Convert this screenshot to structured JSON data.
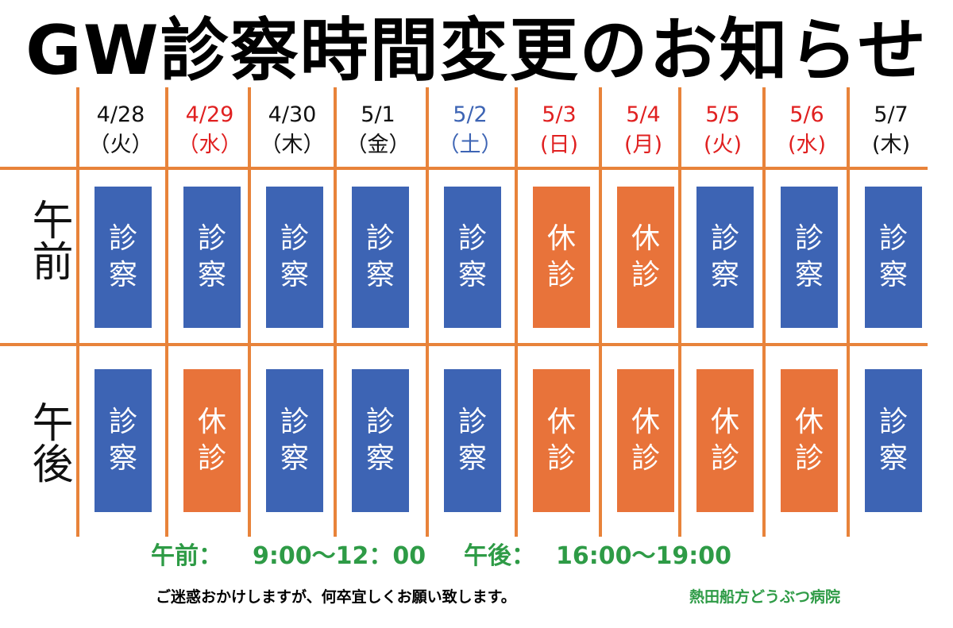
{
  "title": "GW診察時間変更のお知らせ",
  "colors": {
    "grid_line": "#e8833a",
    "open": "#3d64b4",
    "closed": "#e8733a",
    "weekday_text": "#111111",
    "holiday_text": "#e02020",
    "saturday_text": "#3d64b4",
    "hours_text": "#2e9b46"
  },
  "rows": {
    "morning": "午前",
    "afternoon": "午後"
  },
  "labels": {
    "open": "診察",
    "closed": "休診"
  },
  "days": [
    {
      "date": "4/28",
      "weekday": "（火）",
      "type": "weekday",
      "am": "open",
      "pm": "open"
    },
    {
      "date": "4/29",
      "weekday": "（水）",
      "type": "holiday",
      "am": "open",
      "pm": "closed"
    },
    {
      "date": "4/30",
      "weekday": "（木）",
      "type": "weekday",
      "am": "open",
      "pm": "open"
    },
    {
      "date": "5/1",
      "weekday": "（金）",
      "type": "weekday",
      "am": "open",
      "pm": "open"
    },
    {
      "date": "5/2",
      "weekday": "（土）",
      "type": "saturday",
      "am": "open",
      "pm": "open"
    },
    {
      "date": "5/3",
      "weekday": "(日)",
      "type": "holiday",
      "am": "closed",
      "pm": "closed"
    },
    {
      "date": "5/4",
      "weekday": "(月)",
      "type": "holiday",
      "am": "closed",
      "pm": "closed"
    },
    {
      "date": "5/5",
      "weekday": "(火)",
      "type": "holiday",
      "am": "open",
      "pm": "closed"
    },
    {
      "date": "5/6",
      "weekday": "(水)",
      "type": "holiday",
      "am": "open",
      "pm": "closed"
    },
    {
      "date": "5/7",
      "weekday": "(木)",
      "type": "weekday",
      "am": "open",
      "pm": "open"
    }
  ],
  "hours": {
    "morning_label": "午前：",
    "morning_time": "9:00〜12：00",
    "afternoon_label": "午後：",
    "afternoon_time": "16:00〜19:00"
  },
  "footer": {
    "message": "ご迷惑おかけしますが、何卒宜しくお願い致します。",
    "clinic": "熱田船方どうぶつ病院"
  }
}
